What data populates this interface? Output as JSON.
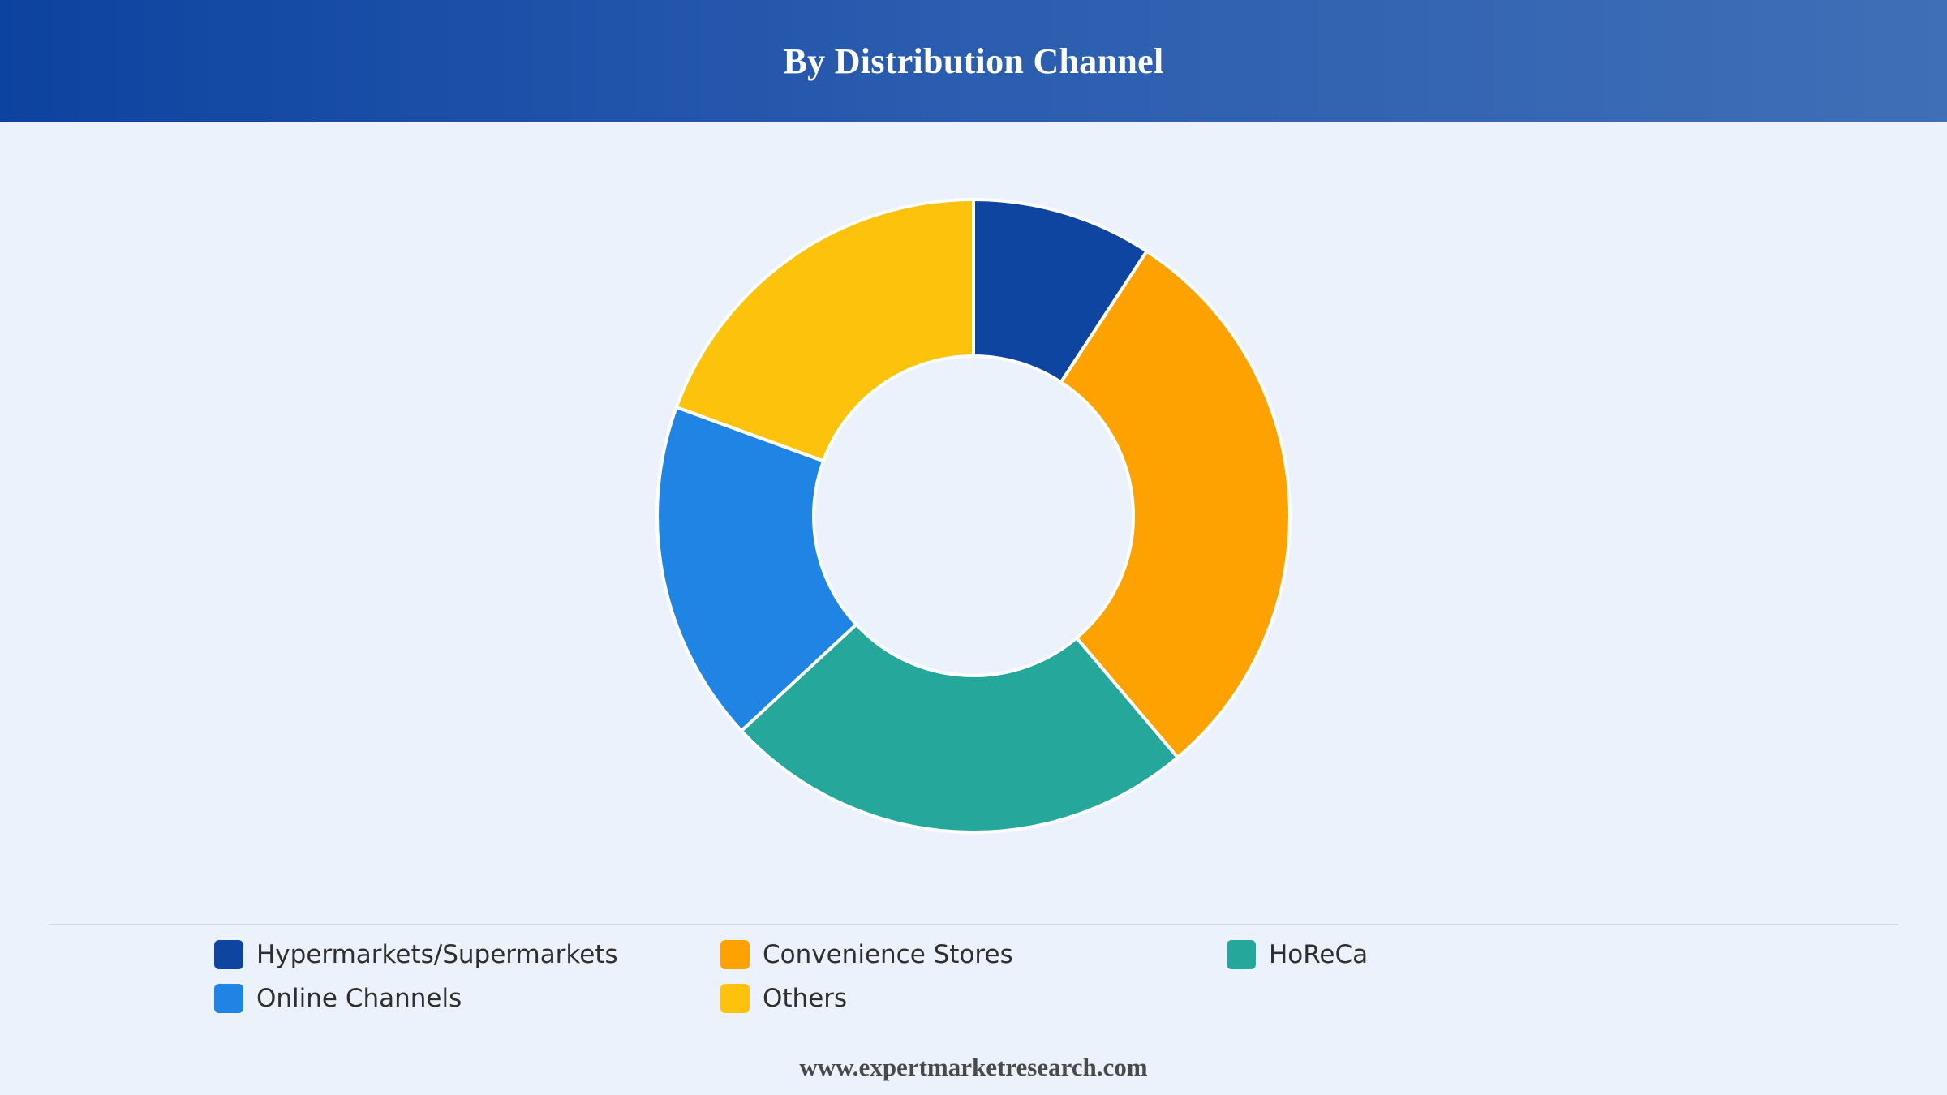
{
  "header": {
    "title": "By Distribution Channel"
  },
  "chart_data": {
    "type": "pie",
    "variant": "donut",
    "title": "By Distribution Channel",
    "legend_position": "bottom",
    "categories": [
      "Hypermarkets/Supermarkets",
      "Convenience Stores",
      "HoReCa",
      "Online Channels",
      "Others"
    ],
    "values": [
      9.5,
      30.5,
      25,
      18,
      20
    ],
    "colors": [
      "#0d45a1",
      "#fda200",
      "#25a79b",
      "#1f84e3",
      "#fdc20b"
    ]
  },
  "legend": {
    "items": [
      {
        "label": "Hypermarkets/Supermarkets",
        "color": "#0d45a1"
      },
      {
        "label": "Convenience Stores",
        "color": "#fda200"
      },
      {
        "label": "HoReCa",
        "color": "#25a79b"
      },
      {
        "label": "Online Channels",
        "color": "#1f84e3"
      },
      {
        "label": "Others",
        "color": "#fdc20b"
      }
    ]
  },
  "footer": {
    "source": "www.expertmarketresearch.com"
  }
}
